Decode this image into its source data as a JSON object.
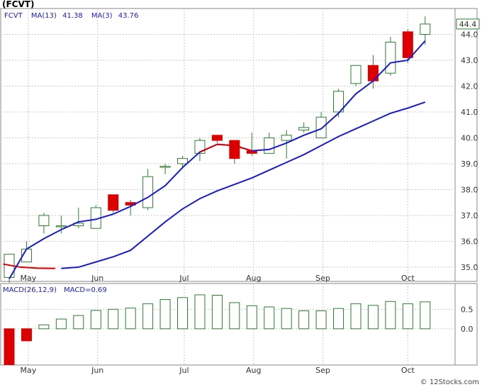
{
  "symbol_title": "(FCVT)",
  "watermark": "© 12Stocks.com",
  "colors": {
    "up_fill": "#ffffff",
    "up_stroke": "#2e7d32",
    "down_fill": "#dd0000",
    "wick": "#2e7d32",
    "ma13": "#1a1ad0",
    "ma3": "#1a1ad0",
    "ma_red_segment": "#dd0000",
    "grid": "#c8c8c8",
    "macd_bar": "#2e7d32",
    "macd_neg": "#dd0000",
    "text": "#333333",
    "legend_text": "#1a1ad0"
  },
  "chart_data": [
    {
      "type": "candlestick",
      "title": "(FCVT)",
      "legend": {
        "ticker": "FCVT",
        "ma13_label": "MA(13)",
        "ma13_value": "41.38",
        "ma3_label": "MA(3)",
        "ma3_value": "43.76"
      },
      "last_price_label": "44.4",
      "ylim": [
        34.45,
        45.0
      ],
      "y_ticks": [
        35.0,
        36.0,
        37.0,
        38.0,
        39.0,
        40.0,
        41.0,
        42.0,
        43.0,
        44.0
      ],
      "y_tick_labels": [
        "35.0",
        "36.0",
        "37.0",
        "38.0",
        "39.0",
        "40.0",
        "41.0",
        "42.0",
        "43.0",
        "44.0"
      ],
      "x_tick_labels": [
        "May",
        "Jun",
        "Jul",
        "Aug",
        "Sep",
        "Oct"
      ],
      "x_tick_index": [
        1.1,
        5.1,
        10.1,
        14.1,
        18.1,
        23.0
      ],
      "candles": [
        {
          "o": 34.6,
          "h": 35.5,
          "l": 34.4,
          "c": 35.5
        },
        {
          "o": 35.2,
          "h": 36.0,
          "l": 35.2,
          "c": 35.7
        },
        {
          "o": 36.6,
          "h": 37.1,
          "l": 36.3,
          "c": 37.0
        },
        {
          "o": 36.6,
          "h": 37.0,
          "l": 36.3,
          "c": 36.6
        },
        {
          "o": 36.6,
          "h": 37.3,
          "l": 36.5,
          "c": 36.7
        },
        {
          "o": 36.5,
          "h": 37.4,
          "l": 36.5,
          "c": 37.3
        },
        {
          "o": 37.8,
          "h": 37.8,
          "l": 37.1,
          "c": 37.2
        },
        {
          "o": 37.5,
          "h": 37.6,
          "l": 37.0,
          "c": 37.4
        },
        {
          "o": 37.3,
          "h": 38.8,
          "l": 37.2,
          "c": 38.5
        },
        {
          "o": 38.9,
          "h": 39.0,
          "l": 38.6,
          "c": 38.9
        },
        {
          "o": 39.0,
          "h": 39.3,
          "l": 38.8,
          "c": 39.2
        },
        {
          "o": 39.4,
          "h": 40.0,
          "l": 39.1,
          "c": 39.9
        },
        {
          "o": 40.1,
          "h": 40.1,
          "l": 39.8,
          "c": 39.9
        },
        {
          "o": 39.9,
          "h": 39.9,
          "l": 39.0,
          "c": 39.2
        },
        {
          "o": 39.5,
          "h": 40.2,
          "l": 39.3,
          "c": 39.4
        },
        {
          "o": 39.4,
          "h": 40.2,
          "l": 39.4,
          "c": 40.0
        },
        {
          "o": 39.9,
          "h": 40.3,
          "l": 39.2,
          "c": 40.1
        },
        {
          "o": 40.3,
          "h": 40.6,
          "l": 40.2,
          "c": 40.4
        },
        {
          "o": 40.0,
          "h": 41.0,
          "l": 40.0,
          "c": 40.8
        },
        {
          "o": 41.0,
          "h": 41.9,
          "l": 40.8,
          "c": 41.8
        },
        {
          "o": 42.1,
          "h": 42.8,
          "l": 42.0,
          "c": 42.8
        },
        {
          "o": 42.8,
          "h": 43.2,
          "l": 41.9,
          "c": 42.2
        },
        {
          "o": 42.5,
          "h": 43.9,
          "l": 42.4,
          "c": 43.7
        },
        {
          "o": 44.1,
          "h": 44.2,
          "l": 42.9,
          "c": 43.1
        },
        {
          "o": 44.0,
          "h": 44.7,
          "l": 43.6,
          "c": 44.4
        }
      ],
      "ma3": [
        34.55,
        35.7,
        36.1,
        36.45,
        36.75,
        36.85,
        37.05,
        37.35,
        37.7,
        38.15,
        38.85,
        39.45,
        39.75,
        39.7,
        39.5,
        39.55,
        39.8,
        40.1,
        40.35,
        40.95,
        41.7,
        42.2,
        42.9,
        43.0,
        43.75
      ],
      "ma3_red_until": 3,
      "ma13": [
        null,
        null,
        null,
        34.95,
        35.0,
        35.2,
        35.4,
        35.65,
        36.2,
        36.75,
        37.25,
        37.65,
        37.95,
        38.2,
        38.45,
        38.75,
        39.05,
        39.35,
        39.7,
        40.05,
        40.35,
        40.65,
        40.95,
        41.15,
        41.38
      ]
    },
    {
      "type": "bar",
      "title": "",
      "legend": {
        "label": "MACD(26,12,9)",
        "value_label": "MACD=0.69"
      },
      "ylim": [
        -0.93,
        1.16
      ],
      "y_ticks": [
        0.0,
        0.5
      ],
      "y_tick_labels": [
        "0.0",
        "0.5"
      ],
      "x_tick_labels": [
        "May",
        "Jun",
        "Jul",
        "Aug",
        "Sep",
        "Oct"
      ],
      "values": [
        -0.92,
        -0.31,
        0.1,
        0.25,
        0.34,
        0.47,
        0.5,
        0.53,
        0.64,
        0.75,
        0.8,
        0.87,
        0.86,
        0.67,
        0.59,
        0.56,
        0.52,
        0.46,
        0.46,
        0.52,
        0.64,
        0.6,
        0.7,
        0.64,
        0.69
      ]
    }
  ]
}
